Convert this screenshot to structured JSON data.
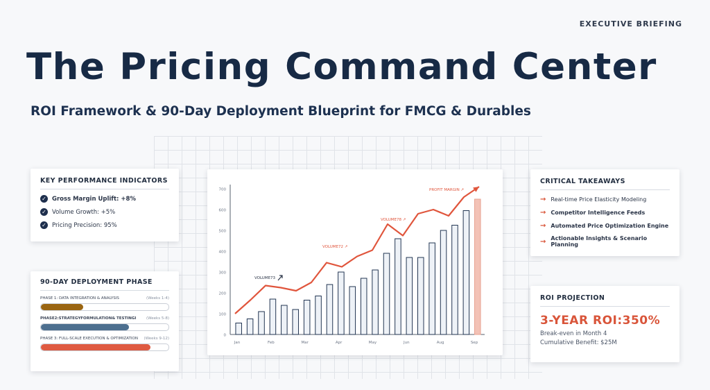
{
  "header": {
    "eyebrow": "EXECUTIVE BRIEFING",
    "title": "The Pricing Command Center",
    "subtitle": "ROI Framework & 90-Day Deployment Blueprint for FMCG & Durables"
  },
  "kpi": {
    "title": "KEY PERFORMANCE INDICATORS",
    "items": [
      "Gross Margin Uplift: +8%",
      "Volume Growth: +5%",
      "Pricing Precision: 95%"
    ]
  },
  "deployment": {
    "title": "90-DAY DEPLOYMENT PHASE",
    "phases": [
      {
        "label": "PHASE 1: DATA INTEGRATION & ANALYSIS",
        "weeks": "(Weeks 1-4)",
        "progress": 0.33,
        "color": "#9a6511"
      },
      {
        "label": "PHASE2:STRATEGYFORMULATION& TESTINGI",
        "weeks": "(Weeks 5-8)",
        "progress": 0.69,
        "color": "#4d6f8f"
      },
      {
        "label": "PHASE 3: FULL-SCALE EXECUTION & OPTIMIZATION",
        "weeks": "(Weeks 9-12)",
        "progress": 0.86,
        "color": "#df5a41"
      }
    ]
  },
  "takeaways": {
    "title": "CRITICAL TAKEAWAYS",
    "items": [
      "Real-time Price Elasticity Modeling",
      "Competitor Intelligence Feeds",
      "Automated Price Optimization Engine",
      "Actionable Insights & Scenario Planning"
    ]
  },
  "roi": {
    "title": "ROI PROJECTION",
    "headline": "3-YEAR ROI:350%",
    "lines": [
      "Break-even in Month 4",
      "Cumulative Benefit: $25M"
    ]
  },
  "chart_data": {
    "type": "bar",
    "ylim": [
      0,
      700
    ],
    "yticks": [
      0,
      100,
      200,
      300,
      400,
      500,
      600,
      700
    ],
    "month_labels": [
      "Jan",
      "Feb",
      "Mar",
      "Apr",
      "May",
      "Jun",
      "Aug",
      "Sep"
    ],
    "bars": [
      55,
      75,
      110,
      170,
      140,
      120,
      165,
      185,
      240,
      300,
      230,
      270,
      310,
      390,
      460,
      370,
      370,
      440,
      500,
      525,
      595,
      650
    ],
    "trend": [
      100,
      165,
      235,
      225,
      210,
      250,
      345,
      325,
      375,
      405,
      530,
      475,
      580,
      600,
      570,
      660,
      710
    ],
    "annotations": [
      "VOLUME73",
      "VOLUME72",
      "VOLUME78",
      "PROFIT MARGIN"
    ],
    "colors": {
      "bar": "#eef2f7",
      "bar_stroke": "#223552",
      "highlight": "#f3c2b6",
      "trend": "#e0553c"
    }
  }
}
